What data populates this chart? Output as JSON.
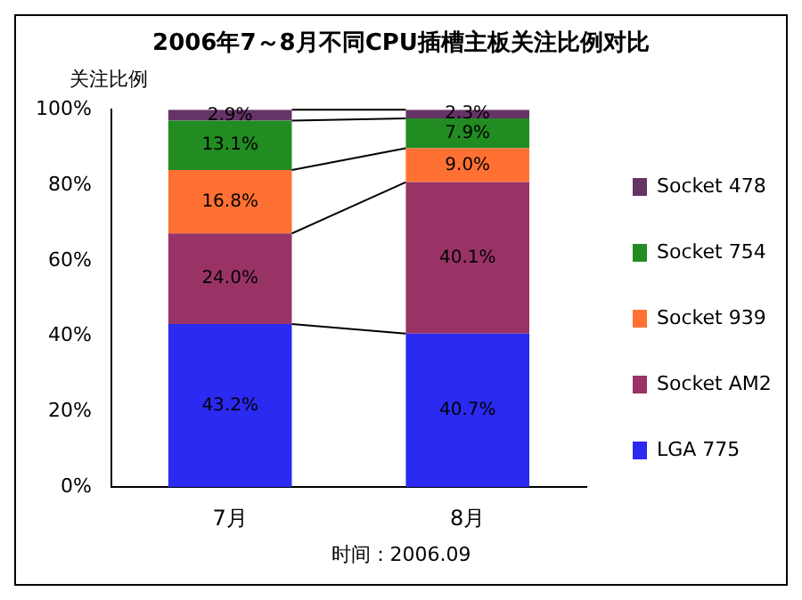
{
  "chart_data": {
    "type": "bar",
    "title": "2006年7～8月不同CPU插槽主板关注比例对比",
    "ylabel": "关注比例",
    "categories": [
      "7月",
      "8月"
    ],
    "stacked": true,
    "legend": "right",
    "grid": false,
    "ylim": [
      0,
      100
    ],
    "yticks": [
      {
        "value": 0,
        "label": "0%"
      },
      {
        "value": 20,
        "label": "20%"
      },
      {
        "value": 40,
        "label": "40%"
      },
      {
        "value": 60,
        "label": "60%"
      },
      {
        "value": 80,
        "label": "80%"
      },
      {
        "value": 100,
        "label": "100%"
      }
    ],
    "series": [
      {
        "name": "LGA 775",
        "color": "#2a2af0",
        "values": [
          43.2,
          40.7
        ],
        "value_labels": [
          "43.2%",
          "40.7%"
        ]
      },
      {
        "name": "Socket AM2",
        "color": "#993366",
        "values": [
          24.0,
          40.1
        ],
        "value_labels": [
          "24.0%",
          "40.1%"
        ]
      },
      {
        "name": "Socket 939",
        "color": "#ff7033",
        "values": [
          16.8,
          9.0
        ],
        "value_labels": [
          "16.8%",
          "9.0%"
        ]
      },
      {
        "name": "Socket 754",
        "color": "#228b22",
        "values": [
          13.1,
          7.9
        ],
        "value_labels": [
          "13.1%",
          "7.9%"
        ]
      },
      {
        "name": "Socket 478",
        "color": "#663366",
        "values": [
          2.9,
          2.3
        ],
        "value_labels": [
          "2.9%",
          "2.3%"
        ]
      }
    ],
    "annotations": [
      "时间：2006.09"
    ]
  }
}
